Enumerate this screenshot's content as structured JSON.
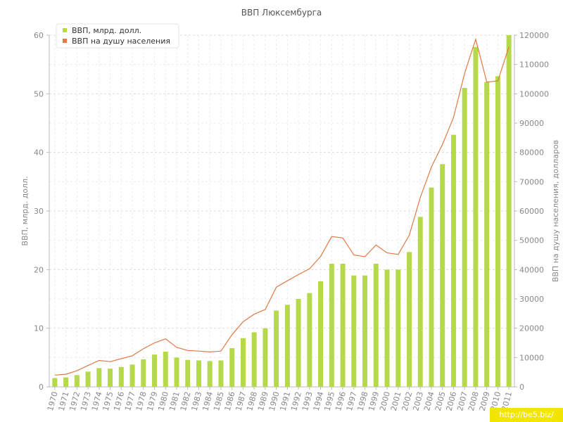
{
  "chart_data": {
    "type": "bar+line",
    "title": "ВВП Люксембурга",
    "ylabel_left": "ВВП, млрд. долл.",
    "ylabel_right": "ВВП на душу населения, долларов",
    "ylim_left": [
      0,
      60
    ],
    "ylim_right": [
      0,
      120000
    ],
    "yticks_left": [
      0,
      10,
      20,
      30,
      40,
      50,
      60
    ],
    "yticks_right": [
      0,
      10000,
      20000,
      30000,
      40000,
      50000,
      60000,
      70000,
      80000,
      90000,
      100000,
      110000,
      120000
    ],
    "grid": true,
    "legend_position": "top-left",
    "categories": [
      "1970",
      "1971",
      "1972",
      "1973",
      "1974",
      "1975",
      "1976",
      "1977",
      "1978",
      "1979",
      "1980",
      "1981",
      "1982",
      "1983",
      "1984",
      "1985",
      "1986",
      "1987",
      "1988",
      "1989",
      "1990",
      "1991",
      "1992",
      "1993",
      "1994",
      "1995",
      "1996",
      "1997",
      "1998",
      "1999",
      "2000",
      "2001",
      "2002",
      "2003",
      "2004",
      "2005",
      "2006",
      "2007",
      "2008",
      "2009",
      "2010",
      "2011"
    ],
    "series": [
      {
        "name": "ВВП, млрд. долл.",
        "kind": "bar",
        "axis": "left",
        "color": "#b5d94a",
        "values": [
          1.5,
          1.6,
          2.0,
          2.6,
          3.2,
          3.1,
          3.4,
          3.8,
          4.7,
          5.5,
          6.0,
          5.0,
          4.6,
          4.5,
          4.4,
          4.5,
          6.6,
          8.3,
          9.3,
          10.0,
          13.0,
          14.0,
          15.0,
          16.0,
          18.0,
          21.0,
          21.0,
          19.0,
          19.0,
          21.0,
          20.0,
          20.0,
          23.0,
          29.0,
          34.0,
          38.0,
          43.0,
          51.0,
          58.0,
          52.0,
          53.0,
          60.0
        ]
      },
      {
        "name": "ВВП на душу населения",
        "kind": "line",
        "axis": "right",
        "color": "#e07a45",
        "values": [
          4000,
          4300,
          5500,
          7300,
          9000,
          8600,
          9600,
          10600,
          13000,
          15000,
          16400,
          13500,
          12400,
          12200,
          11900,
          12200,
          17800,
          22200,
          24800,
          26400,
          34000,
          36200,
          38300,
          40300,
          44500,
          51300,
          50800,
          45000,
          44400,
          48400,
          45700,
          45200,
          51700,
          64600,
          75000,
          82700,
          91900,
          107000,
          118600,
          104000,
          104400,
          116000
        ]
      }
    ]
  },
  "watermark": "http://be5.biz/"
}
